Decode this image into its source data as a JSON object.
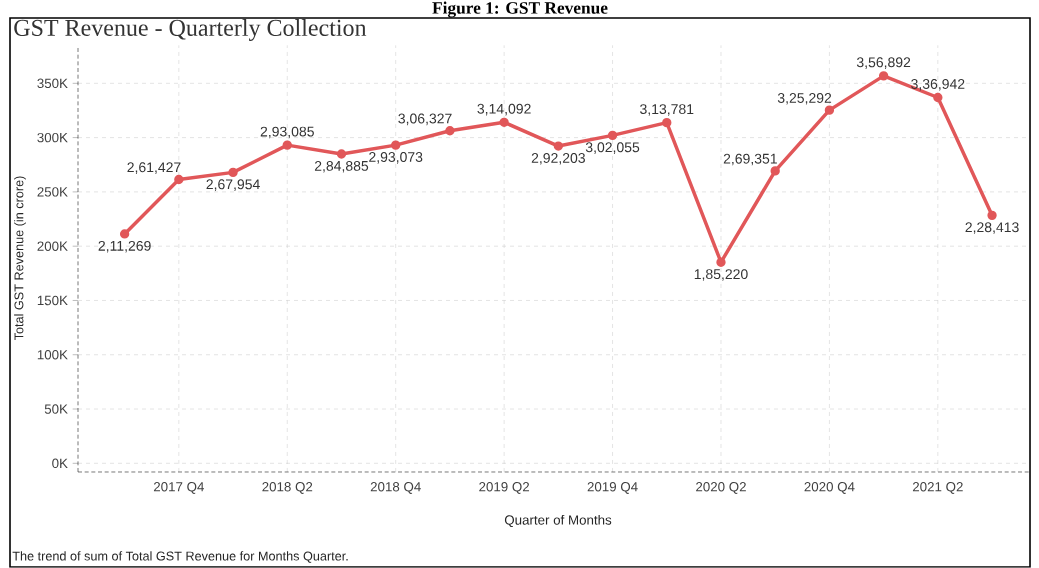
{
  "chart_data": {
    "type": "line",
    "title": "GST Revenue - Quarterly Collection",
    "xlabel": "Quarter of Months",
    "ylabel": "Total GST Revenue (in crore)",
    "annotations": [
      "Figure 1: GST Revenue",
      "The trend of sum of Total GST Revenue for Months Quarter."
    ],
    "categories": [
      null,
      "2017 Q4",
      null,
      "2018 Q2",
      null,
      "2018 Q4",
      null,
      "2019 Q2",
      null,
      "2019 Q4",
      null,
      "2020 Q2",
      null,
      "2020 Q4",
      null,
      "2021 Q2",
      null
    ],
    "series": [
      {
        "color": "#e15759",
        "values": [
          211269,
          261427,
          267954,
          293085,
          284885,
          293073,
          306327,
          314092,
          292203,
          302055,
          313781,
          185220,
          269351,
          325292,
          356892,
          336942,
          228413
        ],
        "value_labels": [
          "2,11,269",
          "2,61,427",
          "2,67,954",
          "2,93,085",
          "2,84,885",
          "2,93,073",
          "3,06,327",
          "3,14,092",
          "2,92,203",
          "3,02,055",
          "3,13,781",
          "1,85,220",
          "2,69,351",
          "3,25,292",
          "3,56,892",
          "3,36,942",
          "2,28,413"
        ]
      }
    ],
    "ylim": [
      -8000,
      385000
    ],
    "yticks": [
      {
        "value": 0,
        "label": "0K"
      },
      {
        "value": 50000,
        "label": "50K"
      },
      {
        "value": 100000,
        "label": "100K"
      },
      {
        "value": 150000,
        "label": "150K"
      },
      {
        "value": 200000,
        "label": "200K"
      },
      {
        "value": 250000,
        "label": "250K"
      },
      {
        "value": 300000,
        "label": "300K"
      },
      {
        "value": 350000,
        "label": "350K"
      }
    ],
    "grid": true,
    "marker": "circle",
    "line_style": "solid"
  }
}
